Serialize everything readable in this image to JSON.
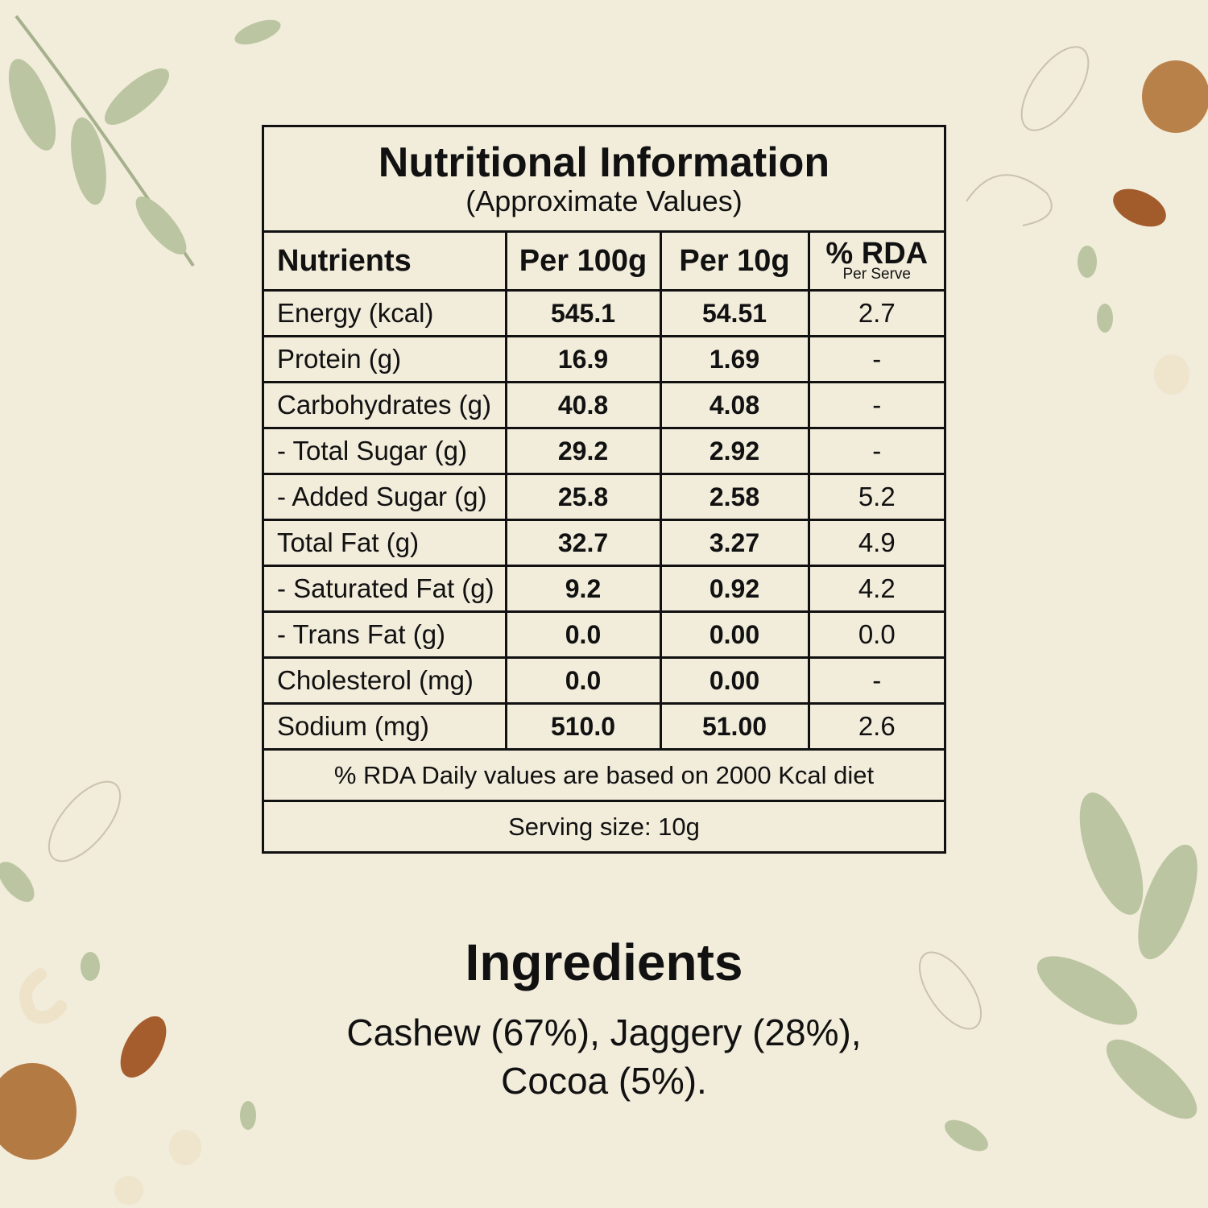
{
  "table": {
    "title": "Nutritional Information",
    "subtitle": "(Approximate Values)",
    "columns": [
      "Nutrients",
      "Per 100g",
      "Per 10g",
      "% RDA"
    ],
    "rda_subtitle": "Per Serve",
    "rows": [
      [
        "Energy (kcal)",
        "545.1",
        "54.51",
        "2.7"
      ],
      [
        "Protein (g)",
        "16.9",
        "1.69",
        "-"
      ],
      [
        "Carbohydrates (g)",
        "40.8",
        "4.08",
        "-"
      ],
      [
        "- Total Sugar (g)",
        "29.2",
        "2.92",
        "-"
      ],
      [
        "- Added Sugar (g)",
        "25.8",
        "2.58",
        "5.2"
      ],
      [
        "Total Fat (g)",
        "32.7",
        "3.27",
        "4.9"
      ],
      [
        "- Saturated Fat (g)",
        "9.2",
        "0.92",
        "4.2"
      ],
      [
        "- Trans Fat (g)",
        "0.0",
        "0.00",
        "0.0"
      ],
      [
        "Cholesterol (mg)",
        "0.0",
        "0.00",
        "-"
      ],
      [
        "Sodium (mg)",
        "510.0",
        "51.00",
        "2.6"
      ]
    ],
    "footnote": "% RDA Daily values are based on 2000 Kcal diet",
    "serving": "Serving size: 10g"
  },
  "ingredients": {
    "title": "Ingredients",
    "lines": [
      "Cashew (67%), Jaggery (28%),",
      "Cocoa (5%)."
    ]
  }
}
